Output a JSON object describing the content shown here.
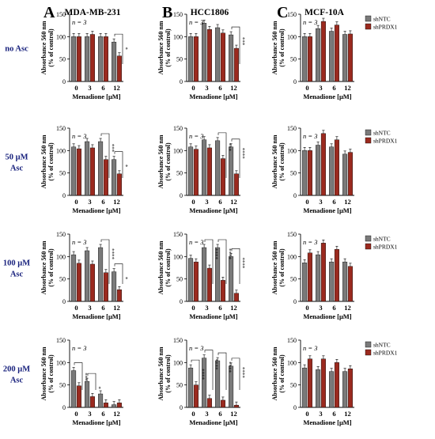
{
  "figure": {
    "column_letters": [
      "A",
      "B",
      "C"
    ],
    "column_titles": [
      "MDA-MB-231",
      "HCC1806",
      "MCF-10A"
    ],
    "row_labels": [
      [
        "no Asc"
      ],
      [
        "50 μM",
        "Asc"
      ],
      [
        "100 μM",
        "Asc"
      ],
      [
        "200 μM",
        "Asc"
      ]
    ]
  },
  "colors": {
    "shNTC": "#7a7a7a",
    "shPRDX1": "#9b2a1f",
    "axis": "#000000",
    "label_blue": "#1a237e"
  },
  "chart_data": {
    "type": "bar",
    "categories": [
      "0",
      "3",
      "6",
      "12"
    ],
    "xlabel": "Menadione [μM]",
    "ylabel": [
      "Absorbance 560 nm",
      "(% of control)"
    ],
    "ylim": [
      0,
      150
    ],
    "yticks": [
      0,
      50,
      100,
      150
    ],
    "series_names": [
      "shNTC",
      "shPRDX1"
    ],
    "n_label": "n = 3",
    "legend_placement": "right",
    "panels": [
      {
        "row": 0,
        "col": 0,
        "shNTC": [
          100,
          100,
          100,
          88
        ],
        "shPRDX1": [
          100,
          105,
          100,
          57
        ],
        "sig": [
          {
            "cat": 3,
            "label": "*"
          }
        ]
      },
      {
        "row": 0,
        "col": 1,
        "shNTC": [
          100,
          130,
          120,
          104
        ],
        "shPRDX1": [
          100,
          116,
          108,
          74
        ],
        "sig": [
          {
            "cat": 3,
            "label": "***"
          }
        ]
      },
      {
        "row": 0,
        "col": 2,
        "shNTC": [
          100,
          118,
          112,
          105
        ],
        "shPRDX1": [
          100,
          134,
          126,
          106
        ],
        "sig": [],
        "legend": true
      },
      {
        "row": 1,
        "col": 0,
        "shNTC": [
          108,
          120,
          120,
          80
        ],
        "shPRDX1": [
          104,
          106,
          80,
          48
        ],
        "sig": [
          {
            "cat": 2,
            "label": "***"
          },
          {
            "cat": 3,
            "label": "*"
          }
        ]
      },
      {
        "row": 1,
        "col": 1,
        "shNTC": [
          108,
          124,
          122,
          108
        ],
        "shPRDX1": [
          103,
          106,
          82,
          48
        ],
        "sig": [
          {
            "cat": 2,
            "label": "***"
          },
          {
            "cat": 3,
            "label": "****"
          }
        ]
      },
      {
        "row": 1,
        "col": 2,
        "shNTC": [
          100,
          112,
          108,
          92
        ],
        "shPRDX1": [
          100,
          138,
          124,
          96
        ],
        "sig": [],
        "legend": true
      },
      {
        "row": 2,
        "col": 0,
        "shNTC": [
          104,
          113,
          120,
          66
        ],
        "shPRDX1": [
          85,
          83,
          64,
          26
        ],
        "sig": [
          {
            "cat": 2,
            "label": "****"
          },
          {
            "cat": 3,
            "label": "*"
          }
        ]
      },
      {
        "row": 2,
        "col": 1,
        "shNTC": [
          96,
          120,
          120,
          100
        ],
        "shPRDX1": [
          88,
          74,
          47,
          18
        ],
        "sig": [
          {
            "cat": 1,
            "label": "****"
          },
          {
            "cat": 2,
            "label": "****"
          },
          {
            "cat": 3,
            "label": "****"
          }
        ]
      },
      {
        "row": 2,
        "col": 2,
        "shNTC": [
          86,
          104,
          88,
          88
        ],
        "shPRDX1": [
          108,
          130,
          116,
          78
        ],
        "sig": [],
        "legend": true
      },
      {
        "row": 3,
        "col": 0,
        "shNTC": [
          82,
          58,
          30,
          6
        ],
        "shPRDX1": [
          48,
          24,
          10,
          10
        ],
        "sig": [
          {
            "cat": 0,
            "label": "***"
          },
          {
            "cat": 1,
            "label": "*"
          }
        ]
      },
      {
        "row": 3,
        "col": 1,
        "shNTC": [
          88,
          110,
          104,
          92
        ],
        "shPRDX1": [
          50,
          20,
          16,
          5
        ],
        "sig": [
          {
            "cat": 0,
            "label": "****"
          },
          {
            "cat": 1,
            "label": "****"
          },
          {
            "cat": 2,
            "label": "****"
          },
          {
            "cat": 3,
            "label": "****"
          }
        ]
      },
      {
        "row": 3,
        "col": 2,
        "shNTC": [
          88,
          84,
          80,
          80
        ],
        "shPRDX1": [
          108,
          108,
          100,
          86
        ],
        "sig": [],
        "legend": true
      }
    ]
  }
}
